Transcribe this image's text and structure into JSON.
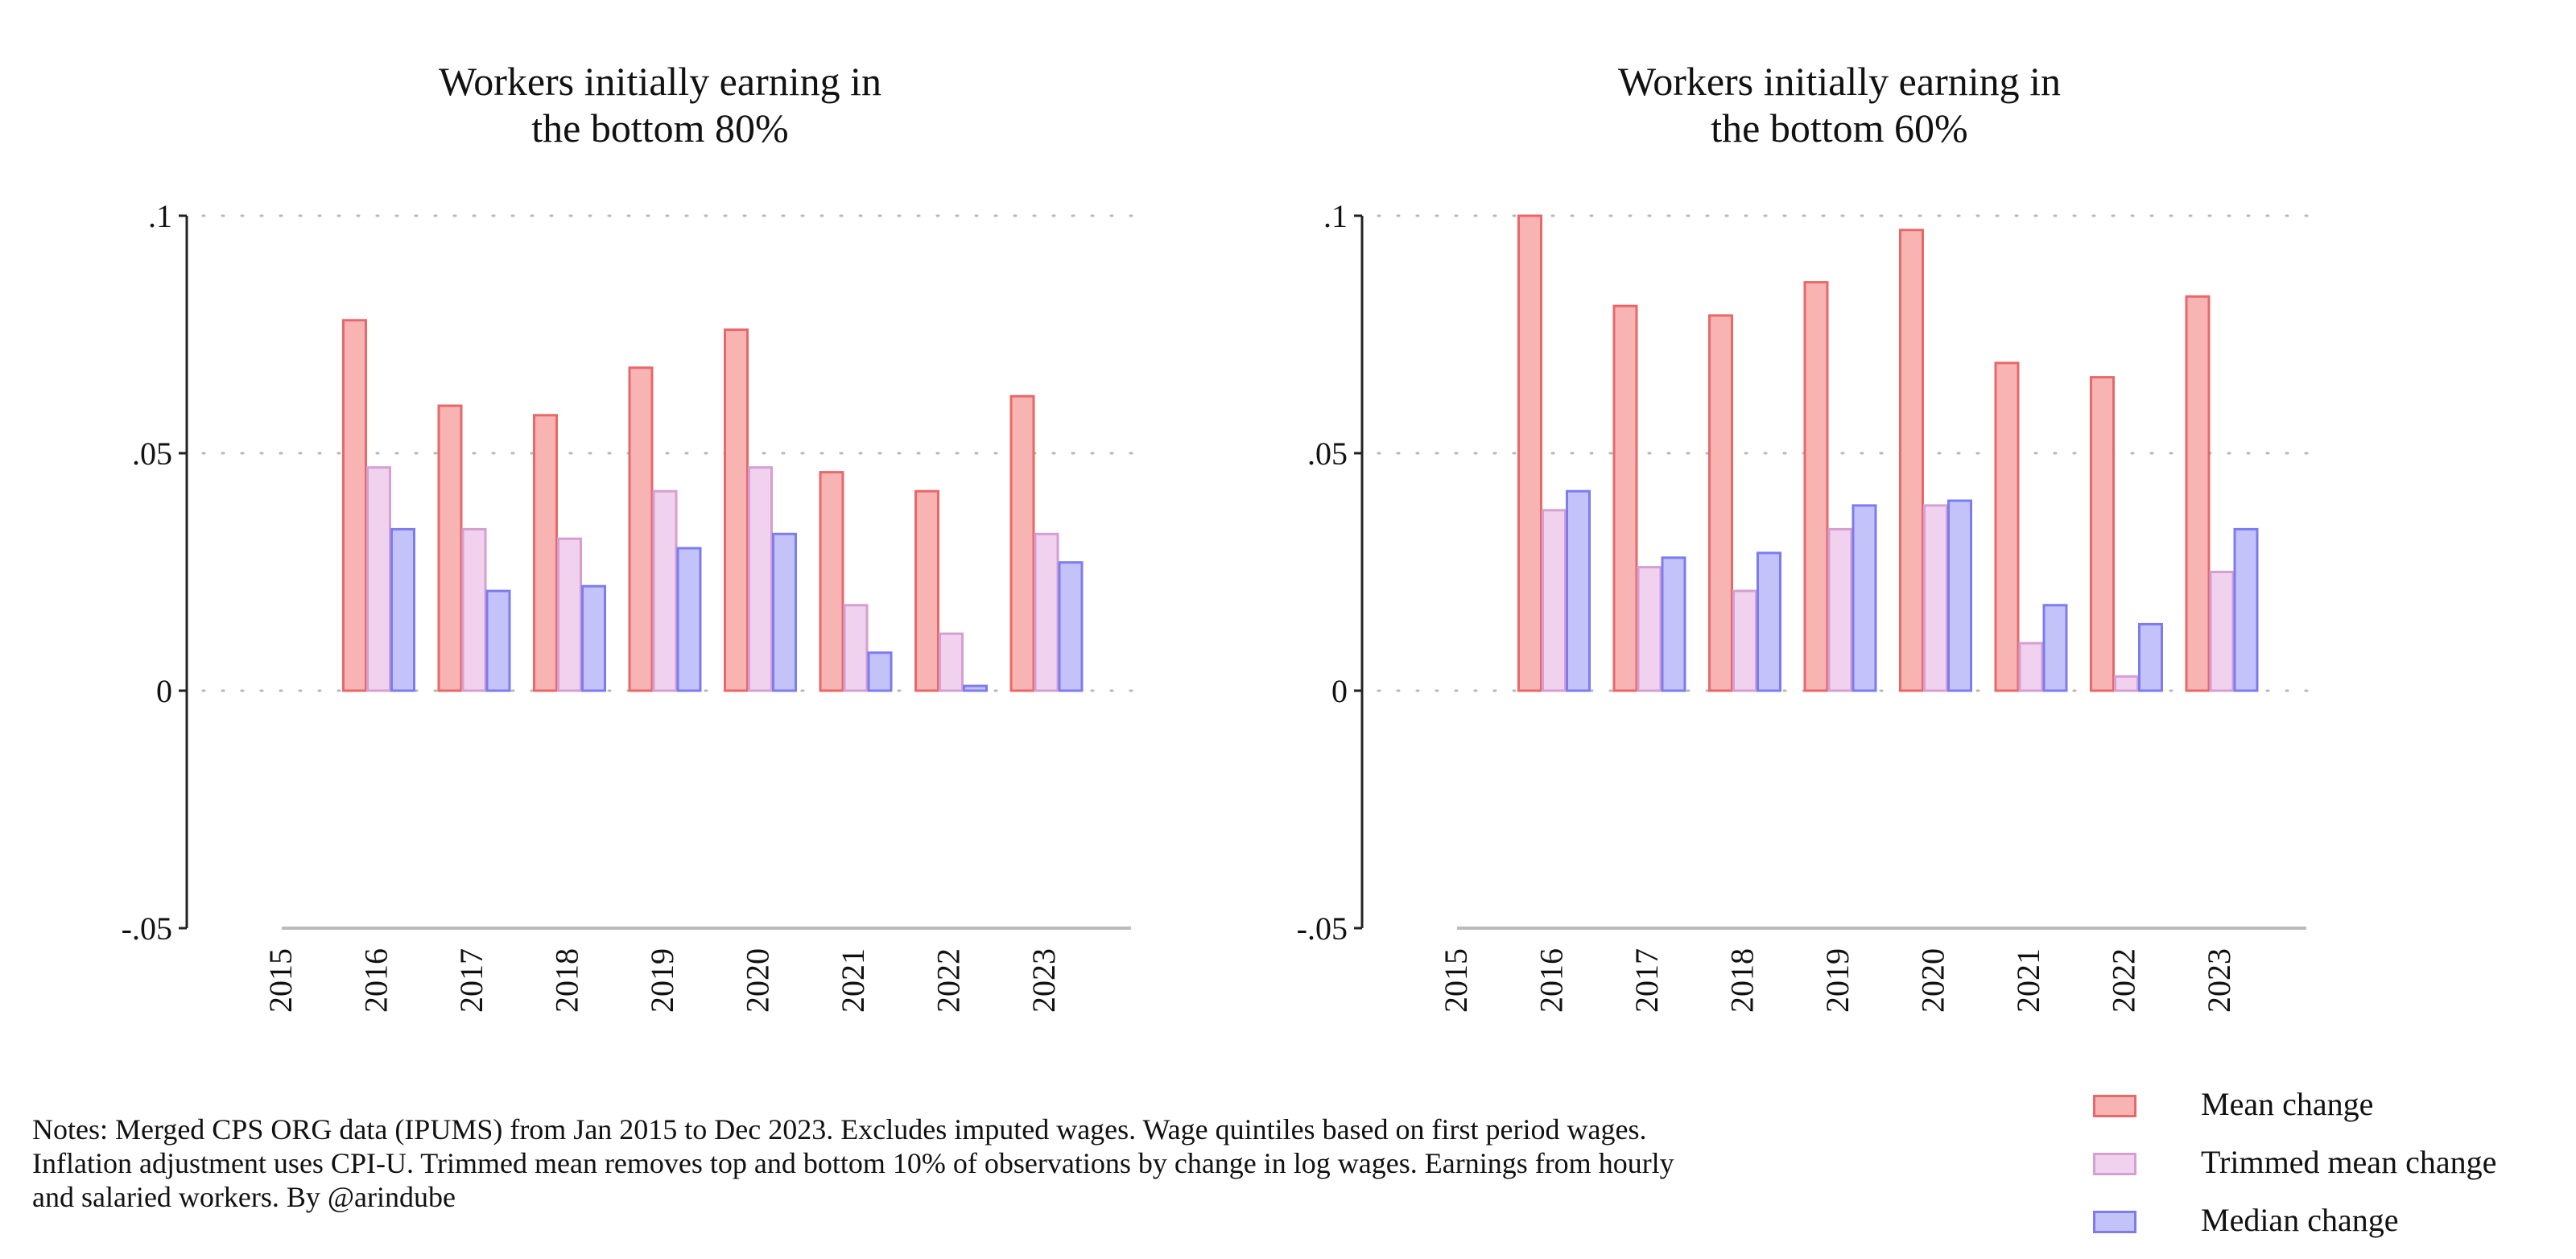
{
  "chart_data": [
    {
      "type": "bar",
      "title_lines": [
        "Workers initially earning in",
        "the bottom 80%"
      ],
      "categories": [
        "2015",
        "2016",
        "2017",
        "2018",
        "2019",
        "2020",
        "2021",
        "2022",
        "2023"
      ],
      "yticks": [
        ".1",
        ".05",
        "0",
        "-.05"
      ],
      "ytick_values": [
        0.1,
        0.05,
        0,
        -0.05
      ],
      "ylim": [
        -0.05,
        0.1
      ],
      "grid": "horizontal dotted",
      "series": [
        {
          "name": "Mean change",
          "values": [
            null,
            0.078,
            0.06,
            0.058,
            0.068,
            0.076,
            0.046,
            0.042,
            0.062
          ]
        },
        {
          "name": "Trimmed mean change",
          "values": [
            null,
            0.047,
            0.034,
            0.032,
            0.042,
            0.047,
            0.018,
            0.012,
            0.033
          ]
        },
        {
          "name": "Median change",
          "values": [
            null,
            0.034,
            0.021,
            0.022,
            0.03,
            0.033,
            0.008,
            0.001,
            0.027
          ]
        }
      ]
    },
    {
      "type": "bar",
      "title_lines": [
        "Workers initially earning in",
        "the bottom 60%"
      ],
      "categories": [
        "2015",
        "2016",
        "2017",
        "2018",
        "2019",
        "2020",
        "2021",
        "2022",
        "2023"
      ],
      "yticks": [
        ".1",
        ".05",
        "0",
        "-.05"
      ],
      "ytick_values": [
        0.1,
        0.05,
        0,
        -0.05
      ],
      "ylim": [
        -0.05,
        0.1
      ],
      "grid": "horizontal dotted",
      "series": [
        {
          "name": "Mean change",
          "values": [
            null,
            0.1,
            0.081,
            0.079,
            0.086,
            0.097,
            0.069,
            0.066,
            0.083
          ]
        },
        {
          "name": "Trimmed mean change",
          "values": [
            null,
            0.038,
            0.026,
            0.021,
            0.034,
            0.039,
            0.01,
            0.003,
            0.025
          ]
        },
        {
          "name": "Median change",
          "values": [
            null,
            0.042,
            0.028,
            0.029,
            0.039,
            0.04,
            0.018,
            0.014,
            0.034
          ]
        }
      ]
    }
  ],
  "legend": {
    "placement": "bottom-right",
    "items": [
      {
        "label": "Mean change",
        "fill": "#f8b3b3",
        "stroke": "#e8686a"
      },
      {
        "label": "Trimmed mean change",
        "fill": "#f0d2ee",
        "stroke": "#d59fd2"
      },
      {
        "label": "Median change",
        "fill": "#c3c3fa",
        "stroke": "#7c7cf0"
      }
    ]
  },
  "notes": {
    "line1": "Notes: Merged CPS ORG data (IPUMS) from Jan 2015 to Dec 2023. Excludes imputed wages. Wage quintiles based on first period wages.",
    "line2": "Inflation adjustment uses CPI-U. Trimmed mean removes top and bottom 10% of observations by change in log wages. Earnings from hourly",
    "line3": "and salaried workers. By @arindube"
  },
  "colors": {
    "mean_fill": "#f8b3b3",
    "mean_stroke": "#e8686a",
    "trimmed_fill": "#f0d2ee",
    "trimmed_stroke": "#d59fd2",
    "median_fill": "#c3c3fa",
    "median_stroke": "#7c7cf0",
    "axis": "#222222",
    "grid": "#b8b8b8",
    "baseline": "#bbbbbb"
  }
}
